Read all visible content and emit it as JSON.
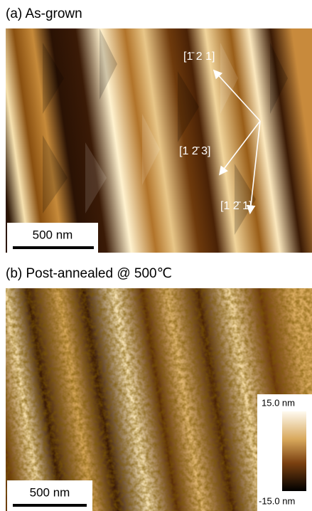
{
  "panels": [
    {
      "title": "(a) As-grown",
      "scale_bar": "500 nm",
      "directions": [
        "[1̄ 2 1]",
        "[1 2̄ 3]",
        "[1 2̄ 1]"
      ]
    },
    {
      "title": "(b) Post-annealed @ 500℃",
      "scale_bar": "500 nm",
      "color_bar": {
        "max_label": "15.0 nm",
        "min_label": "-15.0 nm"
      }
    }
  ]
}
